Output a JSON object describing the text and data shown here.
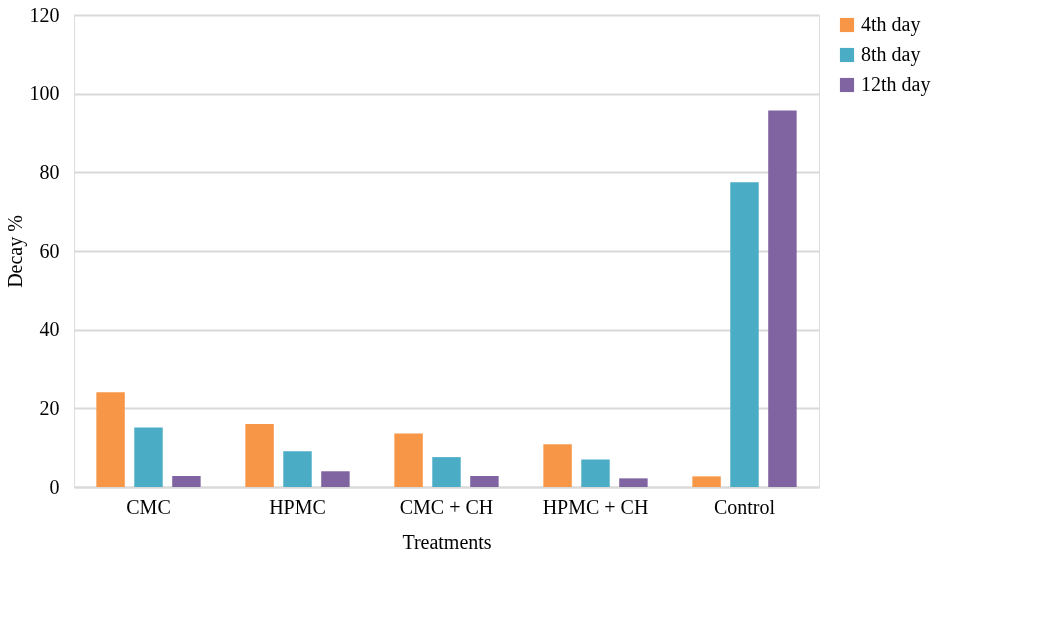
{
  "chart_data": {
    "type": "bar",
    "xlabel": "Treatments",
    "ylabel": "Decay %",
    "categories": [
      "CMC",
      "HPMC",
      "CMC + CH",
      "HPMC + CH",
      "Control"
    ],
    "series": [
      {
        "name": "4th day",
        "color": "#f79646",
        "values": [
          24.1,
          16.0,
          13.6,
          10.9,
          2.7
        ]
      },
      {
        "name": "8th day",
        "color": "#4bacc6",
        "values": [
          15.1,
          9.1,
          7.6,
          7.0,
          77.5
        ]
      },
      {
        "name": "12th day",
        "color": "#8064a2",
        "values": [
          2.8,
          4.0,
          2.8,
          2.2,
          95.7
        ]
      }
    ],
    "ylim": [
      0,
      120
    ],
    "yticks": [
      0,
      20,
      40,
      60,
      80,
      100,
      120
    ],
    "grid": "y",
    "legend": "right"
  }
}
